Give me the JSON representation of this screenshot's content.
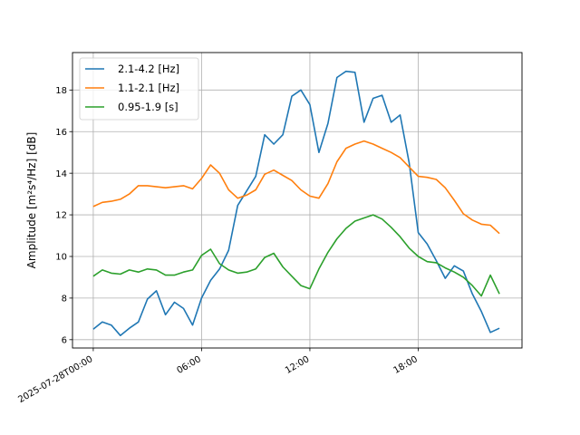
{
  "chart_data": {
    "type": "line",
    "ylabel": "Amplitude [m²s⁴/Hz] [dB]",
    "x_tick_labels": [
      "2025-07-28T00:00",
      "06:00",
      "12:00",
      "18:00"
    ],
    "x_tick_hours": [
      0,
      6,
      12,
      18
    ],
    "xlim_hours": [
      -1.15,
      23.75
    ],
    "ylim": [
      5.6,
      19.8
    ],
    "y_ticks": [
      6,
      8,
      10,
      12,
      14,
      16,
      18
    ],
    "grid": true,
    "legend_position": "top-left",
    "x_hours": [
      0,
      0.5,
      1,
      1.5,
      2,
      2.5,
      3,
      3.5,
      4,
      4.5,
      5,
      5.5,
      6,
      6.5,
      7,
      7.5,
      8,
      8.5,
      9,
      9.5,
      10,
      10.5,
      11,
      11.5,
      12,
      12.5,
      13,
      13.5,
      14,
      14.5,
      15,
      15.5,
      16,
      16.5,
      17,
      17.5,
      18,
      18.5,
      19,
      19.5,
      20,
      20.5,
      21,
      21.5,
      22,
      22.5
    ],
    "series": [
      {
        "name": "2.1-4.2 [Hz]",
        "color": "#1f77b4",
        "values": [
          6.5,
          6.85,
          6.7,
          6.2,
          6.55,
          6.85,
          7.95,
          8.35,
          7.2,
          7.8,
          7.5,
          6.7,
          8.0,
          8.85,
          9.4,
          10.3,
          12.45,
          13.15,
          13.85,
          15.85,
          15.4,
          15.85,
          17.7,
          18.0,
          17.3,
          15.0,
          16.4,
          18.6,
          18.9,
          18.85,
          16.45,
          17.6,
          17.75,
          16.45,
          16.8,
          14.5,
          11.15,
          10.6,
          9.8,
          8.95,
          9.55,
          9.3,
          8.2,
          7.35,
          6.35,
          6.55
        ]
      },
      {
        "name": "1.1-2.1 [Hz]",
        "color": "#ff7f0e",
        "values": [
          12.4,
          12.6,
          12.65,
          12.75,
          13.0,
          13.4,
          13.4,
          13.35,
          13.3,
          13.35,
          13.4,
          13.25,
          13.75,
          14.4,
          14.0,
          13.2,
          12.8,
          12.95,
          13.2,
          13.95,
          14.15,
          13.9,
          13.65,
          13.2,
          12.9,
          12.8,
          13.5,
          14.55,
          15.2,
          15.4,
          15.55,
          15.4,
          15.2,
          15.0,
          14.75,
          14.3,
          13.85,
          13.8,
          13.7,
          13.3,
          12.7,
          12.05,
          11.75,
          11.55,
          11.5,
          11.1
        ]
      },
      {
        "name": "0.95-1.9 [s]",
        "color": "#2ca02c",
        "values": [
          9.05,
          9.35,
          9.2,
          9.15,
          9.35,
          9.25,
          9.4,
          9.35,
          9.1,
          9.1,
          9.25,
          9.35,
          10.05,
          10.35,
          9.65,
          9.35,
          9.2,
          9.25,
          9.4,
          9.95,
          10.15,
          9.5,
          9.05,
          8.6,
          8.45,
          9.4,
          10.2,
          10.85,
          11.35,
          11.7,
          11.85,
          12.0,
          11.8,
          11.4,
          10.95,
          10.4,
          10.0,
          9.75,
          9.7,
          9.45,
          9.25,
          9.0,
          8.6,
          8.1,
          9.1,
          8.2
        ]
      }
    ]
  }
}
